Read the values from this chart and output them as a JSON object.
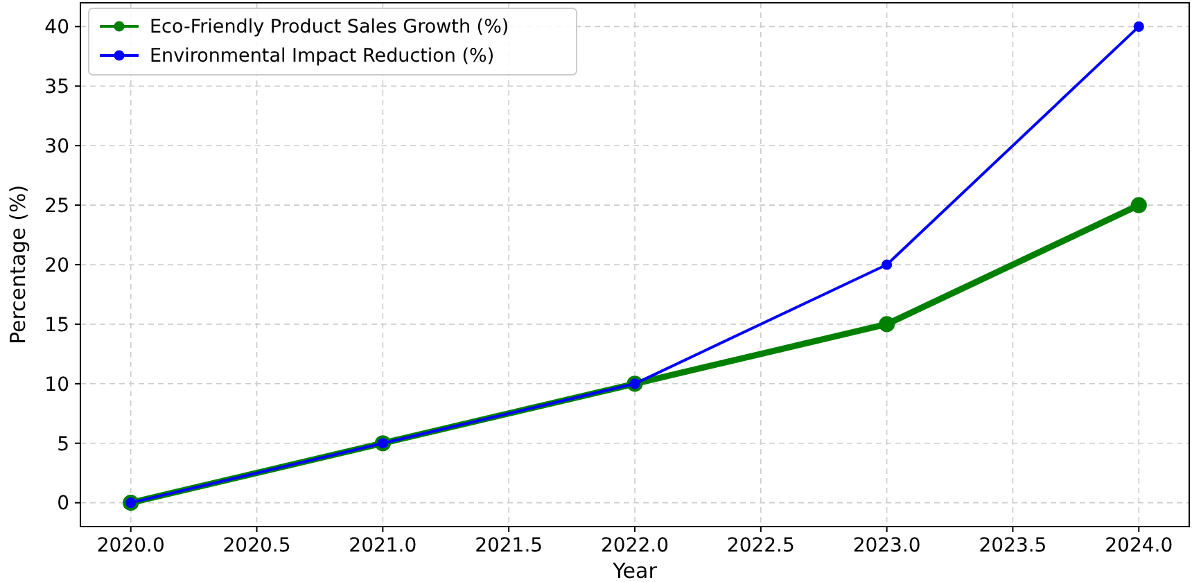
{
  "chart_data": {
    "type": "line",
    "xlabel": "Year",
    "ylabel": "Percentage (%)",
    "x": [
      2020,
      2021,
      2022,
      2023,
      2024
    ],
    "series": [
      {
        "name": "Eco-Friendly Product Sales Growth (%)",
        "color": "#008000",
        "values": [
          0,
          5,
          10,
          15,
          25
        ]
      },
      {
        "name": "Environmental Impact Reduction (%)",
        "color": "#0000ff",
        "values": [
          0,
          5,
          10,
          20,
          40
        ]
      }
    ],
    "xlim": [
      2019.8,
      2024.2
    ],
    "xticks": [
      {
        "value": 2020,
        "label": "2020.0"
      },
      {
        "value": 2020.5,
        "label": "2020.5"
      },
      {
        "value": 2021,
        "label": "2021.0"
      },
      {
        "value": 2021.5,
        "label": "2021.5"
      },
      {
        "value": 2022,
        "label": "2022.0"
      },
      {
        "value": 2022.5,
        "label": "2022.5"
      },
      {
        "value": 2023,
        "label": "2023.0"
      },
      {
        "value": 2023.5,
        "label": "2023.5"
      },
      {
        "value": 2024,
        "label": "2024.0"
      }
    ],
    "ylim": [
      -2,
      42
    ],
    "yticks": [
      0,
      5,
      10,
      15,
      20,
      25,
      30,
      35,
      40
    ],
    "grid": true,
    "legend": "top left",
    "marker": "circle",
    "line_style": "solid"
  }
}
